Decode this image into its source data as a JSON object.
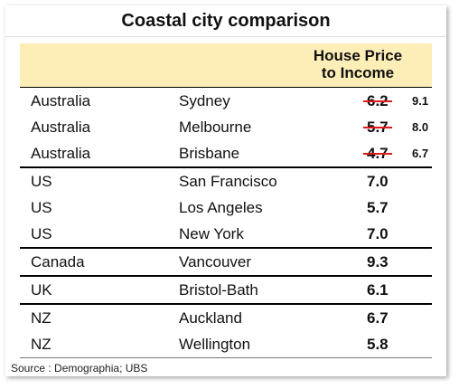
{
  "title": "Coastal city comparison",
  "header": {
    "line1": "House Price",
    "line2": "to Income"
  },
  "groups": [
    {
      "rows": [
        {
          "country": "Australia",
          "city": "Sydney",
          "old": "6.2",
          "new": "9.1"
        },
        {
          "country": "Australia",
          "city": "Melbourne",
          "old": "5.7",
          "new": "8.0"
        },
        {
          "country": "Australia",
          "city": "Brisbane",
          "old": "4.7",
          "new": "6.7"
        }
      ]
    },
    {
      "rows": [
        {
          "country": "US",
          "city": "San Francisco",
          "value": "7.0"
        },
        {
          "country": "US",
          "city": "Los Angeles",
          "value": "5.7"
        },
        {
          "country": "US",
          "city": "New York",
          "value": "7.0"
        }
      ]
    },
    {
      "rows": [
        {
          "country": "Canada",
          "city": "Vancouver",
          "value": "9.3"
        }
      ]
    },
    {
      "rows": [
        {
          "country": "UK",
          "city": "Bristol-Bath",
          "value": "6.1"
        }
      ]
    },
    {
      "rows": [
        {
          "country": "NZ",
          "city": "Auckland",
          "value": "6.7"
        },
        {
          "country": "NZ",
          "city": "Wellington",
          "value": "5.8"
        }
      ]
    }
  ],
  "colors": {
    "header_bg": "#fdeeb8",
    "strike": "#e0181c"
  },
  "source": "Source : Demographia; UBS"
}
